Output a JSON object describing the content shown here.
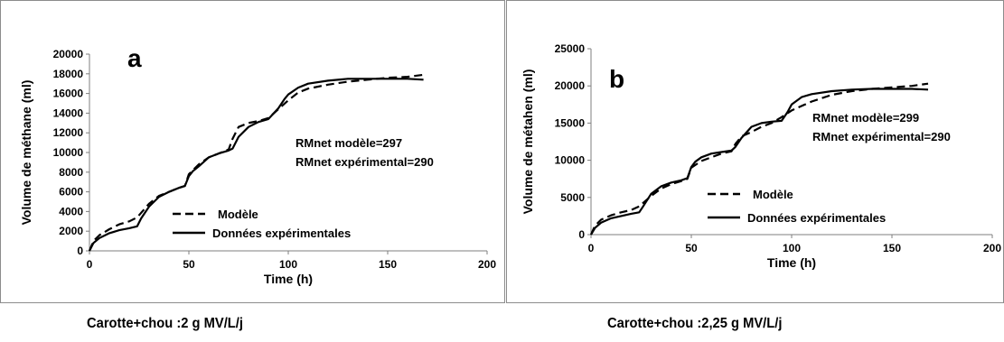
{
  "chart_data": [
    {
      "type": "line",
      "panel_letter": "a",
      "xlabel": "Time (h)",
      "ylabel": "Volume de méthane (ml)",
      "xlim": [
        0,
        200
      ],
      "ylim": [
        0,
        20000
      ],
      "xticks": [
        "0",
        "50",
        "100",
        "150",
        "200"
      ],
      "yticks": [
        "0",
        "2000",
        "4000",
        "6000",
        "8000",
        "10000",
        "12000",
        "14000",
        "16000",
        "18000",
        "20000"
      ],
      "annotations": [
        "RMnet modèle=297",
        "RMnet expérimental=290"
      ],
      "legend_placement": "bottom-left",
      "series": [
        {
          "name": "Modèle",
          "style": "dashed",
          "x": [
            0,
            2,
            5,
            10,
            15,
            20,
            24,
            30,
            35,
            40,
            45,
            48,
            50,
            55,
            60,
            65,
            70,
            72,
            75,
            80,
            85,
            90,
            95,
            100,
            105,
            110,
            120,
            130,
            140,
            150,
            160,
            168
          ],
          "y": [
            0,
            1000,
            1600,
            2200,
            2700,
            3000,
            3400,
            4800,
            5600,
            6000,
            6400,
            6600,
            7800,
            8800,
            9500,
            9900,
            10300,
            11400,
            12600,
            13000,
            13200,
            13500,
            14400,
            15300,
            16100,
            16500,
            16900,
            17200,
            17400,
            17600,
            17700,
            17900
          ]
        },
        {
          "name": "Données expérimentales",
          "style": "solid",
          "x": [
            0,
            2,
            5,
            10,
            15,
            20,
            24,
            26,
            30,
            35,
            40,
            45,
            48,
            50,
            52,
            55,
            60,
            65,
            70,
            72,
            75,
            80,
            85,
            90,
            95,
            98,
            100,
            105,
            110,
            120,
            130,
            140,
            150,
            160,
            168
          ],
          "y": [
            0,
            800,
            1300,
            1800,
            2100,
            2300,
            2500,
            3300,
            4500,
            5500,
            6000,
            6400,
            6600,
            7600,
            8100,
            8600,
            9500,
            9900,
            10200,
            10400,
            11600,
            12600,
            13100,
            13400,
            14500,
            15400,
            15900,
            16600,
            17000,
            17300,
            17500,
            17500,
            17500,
            17500,
            17400
          ]
        }
      ]
    },
    {
      "type": "line",
      "panel_letter": "b",
      "xlabel": "Time (h)",
      "ylabel": "Volume de métahen (ml)",
      "xlim": [
        0,
        200
      ],
      "ylim": [
        0,
        25000
      ],
      "xticks": [
        "0",
        "50",
        "100",
        "150",
        "200"
      ],
      "yticks": [
        "0",
        "5000",
        "10000",
        "15000",
        "20000",
        "25000"
      ],
      "annotations": [
        "RMnet modèle=299",
        "RMnet expérimental=290"
      ],
      "legend_placement": "bottom-center",
      "series": [
        {
          "name": "Modèle",
          "style": "dashed",
          "x": [
            0,
            2,
            5,
            10,
            15,
            20,
            24,
            30,
            35,
            40,
            45,
            48,
            50,
            55,
            60,
            65,
            70,
            72,
            75,
            80,
            85,
            90,
            95,
            100,
            105,
            110,
            120,
            130,
            140,
            150,
            160,
            168
          ],
          "y": [
            0,
            1200,
            2000,
            2600,
            3000,
            3300,
            3800,
            5200,
            6200,
            6800,
            7200,
            7500,
            9000,
            9900,
            10400,
            10900,
            11200,
            12200,
            13200,
            13800,
            14500,
            15000,
            15800,
            16700,
            17300,
            17900,
            18800,
            19300,
            19600,
            19800,
            20000,
            20300
          ]
        },
        {
          "name": "Données expérimentales",
          "style": "solid",
          "x": [
            0,
            2,
            5,
            10,
            15,
            20,
            24,
            26,
            30,
            35,
            40,
            45,
            48,
            50,
            52,
            55,
            60,
            65,
            70,
            72,
            75,
            80,
            85,
            90,
            95,
            98,
            100,
            105,
            110,
            120,
            130,
            140,
            150,
            160,
            168
          ],
          "y": [
            0,
            900,
            1600,
            2200,
            2500,
            2800,
            3000,
            3800,
            5500,
            6500,
            7000,
            7300,
            7600,
            9100,
            9800,
            10400,
            10900,
            11100,
            11300,
            11800,
            13000,
            14500,
            15000,
            15200,
            15300,
            16500,
            17500,
            18500,
            18900,
            19300,
            19500,
            19600,
            19600,
            19600,
            19500
          ]
        }
      ]
    }
  ],
  "captions": {
    "a": "Carotte+chou :2 g MV/L/j",
    "b": "Carotte+chou :2,25 g MV/L/j"
  }
}
